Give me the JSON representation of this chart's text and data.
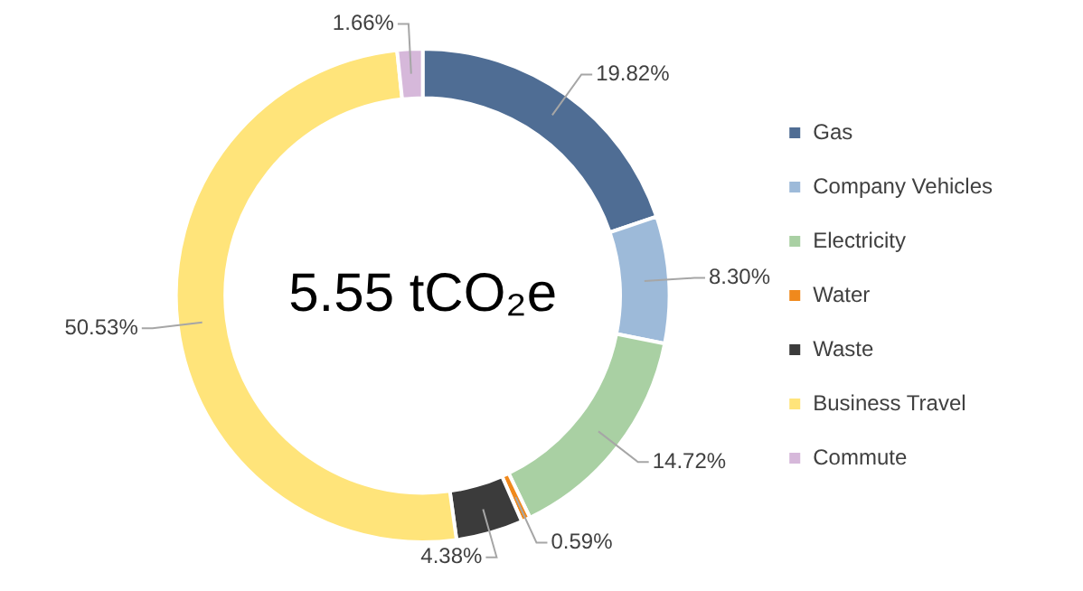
{
  "chart_data": {
    "type": "donut",
    "categories": [
      "Gas",
      "Company Vehicles",
      "Electricity",
      "Water",
      "Waste",
      "Business Travel",
      "Commute"
    ],
    "values": [
      19.82,
      8.3,
      14.72,
      0.59,
      4.38,
      50.53,
      1.66
    ],
    "colors": [
      "#4f6d94",
      "#9dbad9",
      "#a9d0a3",
      "#f0891c",
      "#3b3b3b",
      "#ffe47a",
      "#d6b8da"
    ],
    "value_labels": [
      "19.82%",
      "8.30%",
      "14.72%",
      "0.59%",
      "4.38%",
      "50.53%",
      "1.66%"
    ],
    "annotations": [
      "5.55 tCO₂e"
    ],
    "legend": "right"
  }
}
